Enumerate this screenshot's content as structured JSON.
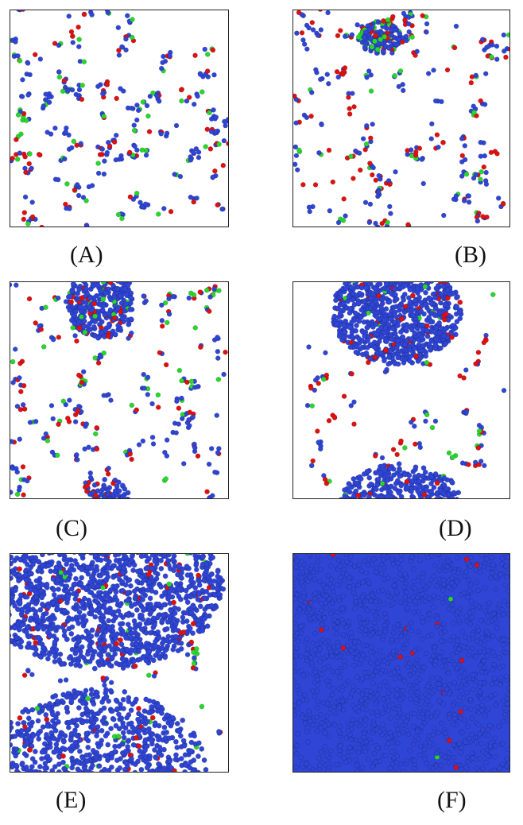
{
  "panels": [
    {
      "label": "(A)",
      "scene": "dispersed particles, no aggregation",
      "coverage": 0.0
    },
    {
      "label": "(B)",
      "scene": "small cluster forming near top",
      "coverage": 0.05
    },
    {
      "label": "(C)",
      "scene": "growing clusters at top and bottom",
      "coverage": 0.12
    },
    {
      "label": "(D)",
      "scene": "large dense clusters at top and bottom",
      "coverage": 0.35
    },
    {
      "label": "(E)",
      "scene": "clusters merging, most area filled",
      "coverage": 0.75
    },
    {
      "label": "(F)",
      "scene": "box fully filled with blue particles",
      "coverage": 1.0
    }
  ],
  "colors": {
    "blue": "#2f45d6",
    "red": "#e01010",
    "green": "#27d82a",
    "frame": "#222222",
    "background": "#ffffff"
  }
}
